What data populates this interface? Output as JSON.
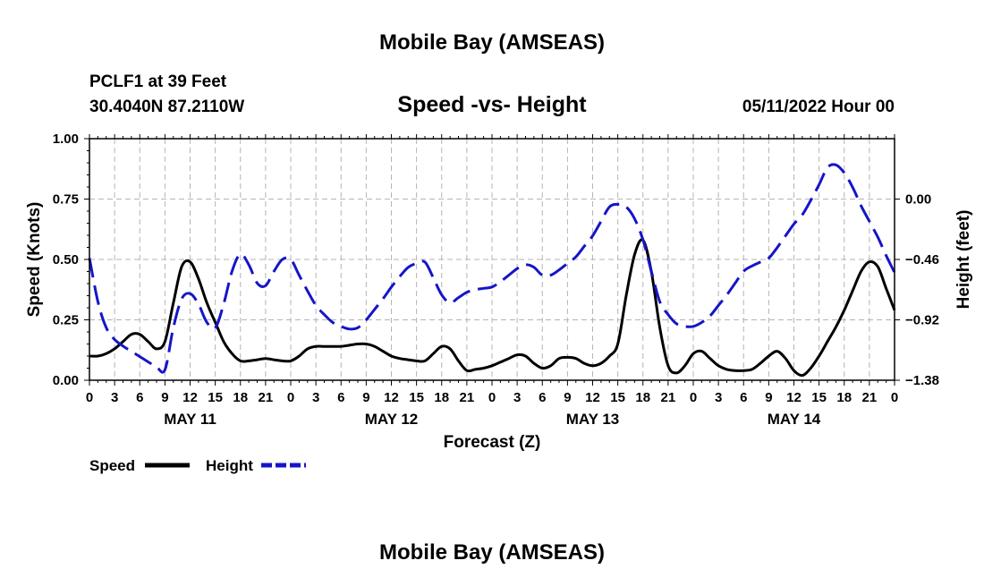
{
  "header": {
    "title": "Mobile Bay (AMSEAS)",
    "station_line": "PCLF1 at 39 Feet",
    "coords_line": "30.4040N  87.2110W",
    "subtitle": "Speed -vs- Height",
    "datetime": "05/11/2022 Hour 00",
    "footer_title": "Mobile Bay (AMSEAS)"
  },
  "legend": {
    "speed_label": "Speed",
    "height_label": "Height"
  },
  "colors": {
    "speed": "#000000",
    "height": "#1515c8",
    "grid": "#b4b4b4"
  },
  "chart_data": {
    "type": "line",
    "title": "Speed -vs- Height",
    "xlabel": "Forecast (Z)",
    "ylabel": "Speed (Knots)",
    "y2label": "Height (feet)",
    "x_unit": "forecast hours from 05/11/2022 00Z",
    "xlim": [
      0,
      96
    ],
    "ylim": [
      0,
      1
    ],
    "y2lim": [
      -1.38,
      0.46
    ],
    "x_ticks": [
      0,
      3,
      6,
      9,
      12,
      15,
      18,
      21,
      24,
      27,
      30,
      33,
      36,
      39,
      42,
      45,
      48,
      51,
      54,
      57,
      60,
      63,
      66,
      69,
      72,
      75,
      78,
      81,
      84,
      87,
      90,
      93,
      96
    ],
    "x_tick_labels": [
      "0",
      "3",
      "6",
      "9",
      "12",
      "15",
      "18",
      "21",
      "0",
      "3",
      "6",
      "9",
      "12",
      "15",
      "18",
      "21",
      "0",
      "3",
      "6",
      "9",
      "12",
      "15",
      "18",
      "21",
      "0",
      "3",
      "6",
      "9",
      "12",
      "15",
      "18",
      "21",
      "0"
    ],
    "day_labels": [
      {
        "x": 12,
        "text": "MAY 11"
      },
      {
        "x": 36,
        "text": "MAY 12"
      },
      {
        "x": 60,
        "text": "MAY 13"
      },
      {
        "x": 84,
        "text": "MAY 14"
      }
    ],
    "y_ticks": [
      0.0,
      0.25,
      0.5,
      0.75,
      1.0
    ],
    "y_tick_labels": [
      "0.00",
      "0.25",
      "0.50",
      "0.75",
      "1.00"
    ],
    "y2_ticks": [
      0.0,
      -0.46,
      -0.92,
      -1.38
    ],
    "y2_tick_labels": [
      "0.00",
      "−0.46",
      "−0.92",
      "−1.38"
    ],
    "grid": true,
    "legend": "bottom-left",
    "series": [
      {
        "name": "Speed",
        "axis": "left",
        "style": "solid",
        "x": [
          0,
          1,
          2,
          3,
          4,
          5,
          6,
          7,
          8,
          9,
          10,
          11,
          12,
          13,
          14,
          15,
          16,
          17,
          18,
          19,
          20,
          21,
          22,
          23,
          24,
          25,
          26,
          27,
          28,
          29,
          30,
          31,
          32,
          33,
          34,
          35,
          36,
          37,
          38,
          39,
          40,
          41,
          42,
          43,
          44,
          45,
          46,
          47,
          48,
          49,
          50,
          51,
          52,
          53,
          54,
          55,
          56,
          57,
          58,
          59,
          60,
          61,
          62,
          63,
          64,
          65,
          66,
          67,
          68,
          69,
          70,
          71,
          72,
          73,
          74,
          75,
          76,
          77,
          78,
          79,
          80,
          81,
          82,
          83,
          84,
          85,
          86,
          87,
          88,
          89,
          90,
          91,
          92,
          93,
          94,
          95,
          96
        ],
        "values": [
          0.1,
          0.1,
          0.11,
          0.13,
          0.16,
          0.19,
          0.19,
          0.16,
          0.13,
          0.16,
          0.32,
          0.47,
          0.49,
          0.42,
          0.32,
          0.24,
          0.16,
          0.11,
          0.08,
          0.08,
          0.085,
          0.09,
          0.085,
          0.08,
          0.08,
          0.1,
          0.13,
          0.14,
          0.14,
          0.14,
          0.14,
          0.145,
          0.15,
          0.15,
          0.14,
          0.12,
          0.1,
          0.09,
          0.085,
          0.08,
          0.08,
          0.11,
          0.14,
          0.13,
          0.08,
          0.04,
          0.045,
          0.05,
          0.06,
          0.075,
          0.09,
          0.105,
          0.1,
          0.07,
          0.05,
          0.06,
          0.09,
          0.095,
          0.09,
          0.07,
          0.06,
          0.07,
          0.1,
          0.15,
          0.35,
          0.52,
          0.58,
          0.45,
          0.22,
          0.06,
          0.03,
          0.06,
          0.11,
          0.12,
          0.09,
          0.06,
          0.045,
          0.04,
          0.04,
          0.045,
          0.07,
          0.1,
          0.12,
          0.09,
          0.04,
          0.02,
          0.05,
          0.1,
          0.16,
          0.22,
          0.29,
          0.37,
          0.45,
          0.49,
          0.47,
          0.38,
          0.29
        ]
      },
      {
        "name": "Height",
        "axis": "right",
        "style": "dashed",
        "x": [
          0,
          1,
          2,
          3,
          4,
          5,
          6,
          7,
          8,
          9,
          10,
          11,
          12,
          13,
          14,
          15,
          16,
          17,
          18,
          19,
          20,
          21,
          22,
          23,
          24,
          25,
          26,
          27,
          28,
          29,
          30,
          31,
          32,
          33,
          34,
          35,
          36,
          37,
          38,
          39,
          40,
          41,
          42,
          43,
          44,
          45,
          46,
          47,
          48,
          49,
          50,
          51,
          52,
          53,
          54,
          55,
          56,
          57,
          58,
          59,
          60,
          61,
          62,
          63,
          64,
          65,
          66,
          67,
          68,
          69,
          70,
          71,
          72,
          73,
          74,
          75,
          76,
          77,
          78,
          79,
          80,
          81,
          82,
          83,
          84,
          85,
          86,
          87,
          88,
          89,
          90,
          91,
          92,
          93,
          94,
          95,
          96
        ],
        "values": [
          -0.45,
          -0.78,
          -0.98,
          -1.07,
          -1.12,
          -1.16,
          -1.2,
          -1.24,
          -1.28,
          -1.3,
          -0.98,
          -0.76,
          -0.72,
          -0.8,
          -0.94,
          -0.98,
          -0.8,
          -0.55,
          -0.42,
          -0.5,
          -0.64,
          -0.66,
          -0.55,
          -0.46,
          -0.46,
          -0.58,
          -0.7,
          -0.81,
          -0.88,
          -0.94,
          -0.97,
          -0.99,
          -0.98,
          -0.92,
          -0.84,
          -0.76,
          -0.67,
          -0.59,
          -0.52,
          -0.49,
          -0.48,
          -0.6,
          -0.73,
          -0.79,
          -0.75,
          -0.71,
          -0.69,
          -0.68,
          -0.67,
          -0.63,
          -0.58,
          -0.53,
          -0.5,
          -0.52,
          -0.58,
          -0.58,
          -0.54,
          -0.49,
          -0.44,
          -0.36,
          -0.28,
          -0.17,
          -0.06,
          -0.04,
          -0.06,
          -0.15,
          -0.31,
          -0.55,
          -0.78,
          -0.88,
          -0.95,
          -0.97,
          -0.97,
          -0.94,
          -0.89,
          -0.81,
          -0.73,
          -0.64,
          -0.55,
          -0.51,
          -0.48,
          -0.45,
          -0.37,
          -0.28,
          -0.19,
          -0.12,
          -0.01,
          0.11,
          0.24,
          0.26,
          0.2,
          0.09,
          -0.05,
          -0.17,
          -0.29,
          -0.43,
          -0.56
        ]
      }
    ]
  }
}
